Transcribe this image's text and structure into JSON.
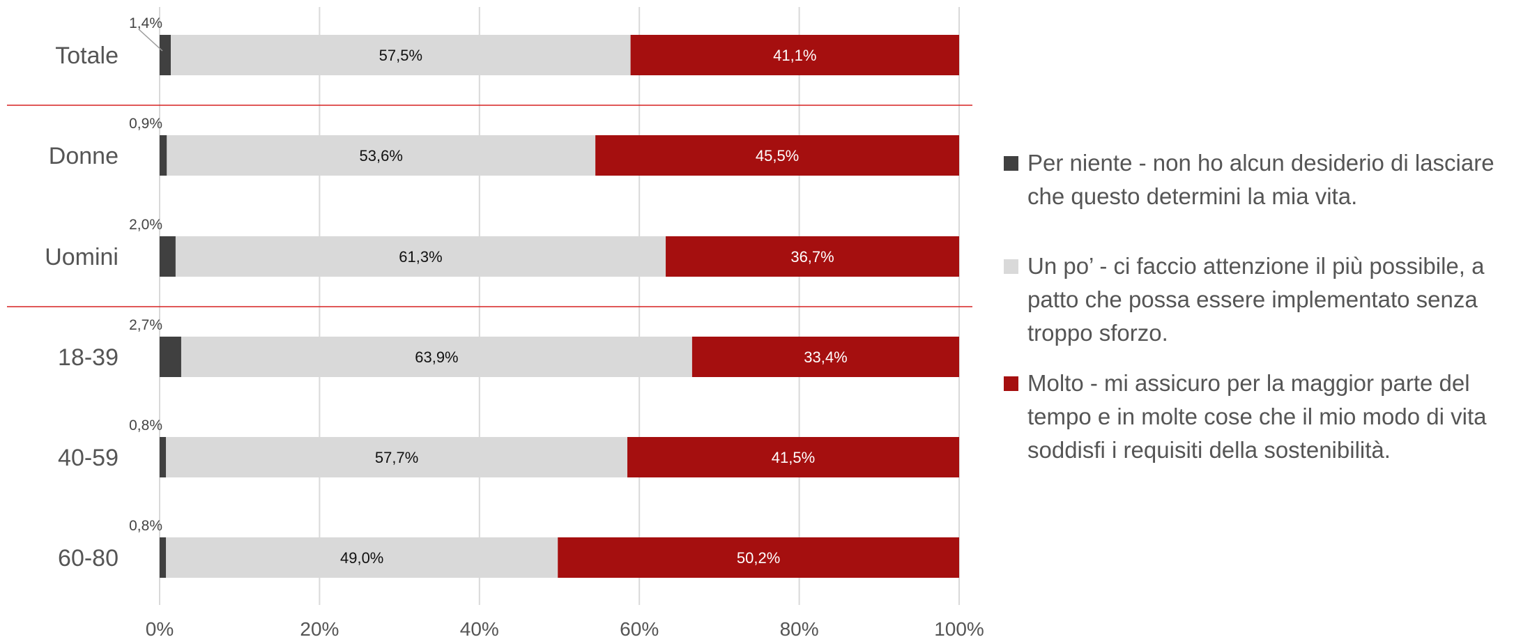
{
  "chart_data": {
    "type": "bar",
    "orientation": "horizontal",
    "stacked": true,
    "categories": [
      "Totale",
      "Donne",
      "Uomini",
      "18-39",
      "40-59",
      "60-80"
    ],
    "series": [
      {
        "name": "Per niente - non ho alcun desiderio di lasciare che questo determini la mia vita.",
        "color": "#404040",
        "values": [
          1.4,
          0.9,
          2.0,
          2.7,
          0.8,
          0.8
        ],
        "labels": [
          "1,4%",
          "0,9%",
          "2,0%",
          "2,7%",
          "0,8%",
          "0,8%"
        ]
      },
      {
        "name": "Un po’ - ci faccio attenzione il più possibile, a patto che possa essere implementato senza troppo sforzo.",
        "color": "#d9d9d9",
        "values": [
          57.5,
          53.6,
          61.3,
          63.9,
          57.7,
          49.0
        ],
        "labels": [
          "57,5%",
          "53,6%",
          "61,3%",
          "63,9%",
          "57,7%",
          "49,0%"
        ]
      },
      {
        "name": "Molto - mi assicuro per la maggior parte del tempo e in molte cose che il mio modo di vita soddisfi i requisiti della sostenibilità.",
        "color": "#a50f0f",
        "values": [
          41.1,
          45.5,
          36.7,
          33.4,
          41.5,
          50.2
        ],
        "labels": [
          "41,1%",
          "45,5%",
          "36,7%",
          "33,4%",
          "41,5%",
          "50,2%"
        ]
      }
    ],
    "x_ticks": [
      "0%",
      "20%",
      "40%",
      "60%",
      "80%",
      "100%"
    ],
    "xlim": [
      0,
      100
    ],
    "grid": "vertical",
    "legend_position": "right",
    "group_separators_after": [
      "Totale",
      "Uomini"
    ],
    "separator_color": "#d62020"
  }
}
